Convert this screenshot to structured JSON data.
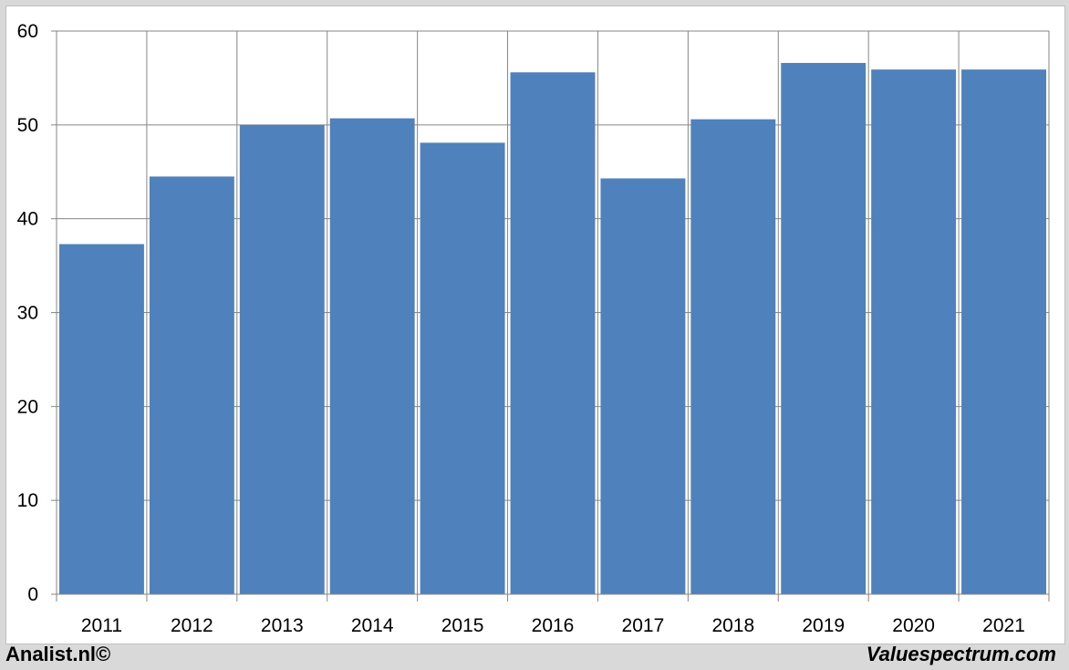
{
  "chart_data": {
    "type": "bar",
    "title": "",
    "xlabel": "",
    "ylabel": "",
    "categories": [
      "2011",
      "2012",
      "2013",
      "2014",
      "2015",
      "2016",
      "2017",
      "2018",
      "2019",
      "2020",
      "2021"
    ],
    "values": [
      37.3,
      44.5,
      50.0,
      50.7,
      48.1,
      55.6,
      44.3,
      50.6,
      56.6,
      55.9,
      55.9
    ],
    "ylim": [
      0,
      60
    ],
    "yticks": [
      "0",
      "10",
      "20",
      "30",
      "40",
      "50",
      "60"
    ],
    "grid": true,
    "legend": "none",
    "colors": {
      "bar": "#4f81bd",
      "grid": "#868686",
      "background": "#ffffff",
      "frame": "#d9d9d9"
    }
  },
  "footer": {
    "left_text": "Analist.nl©",
    "right_text": "Valuespectrum.com"
  }
}
